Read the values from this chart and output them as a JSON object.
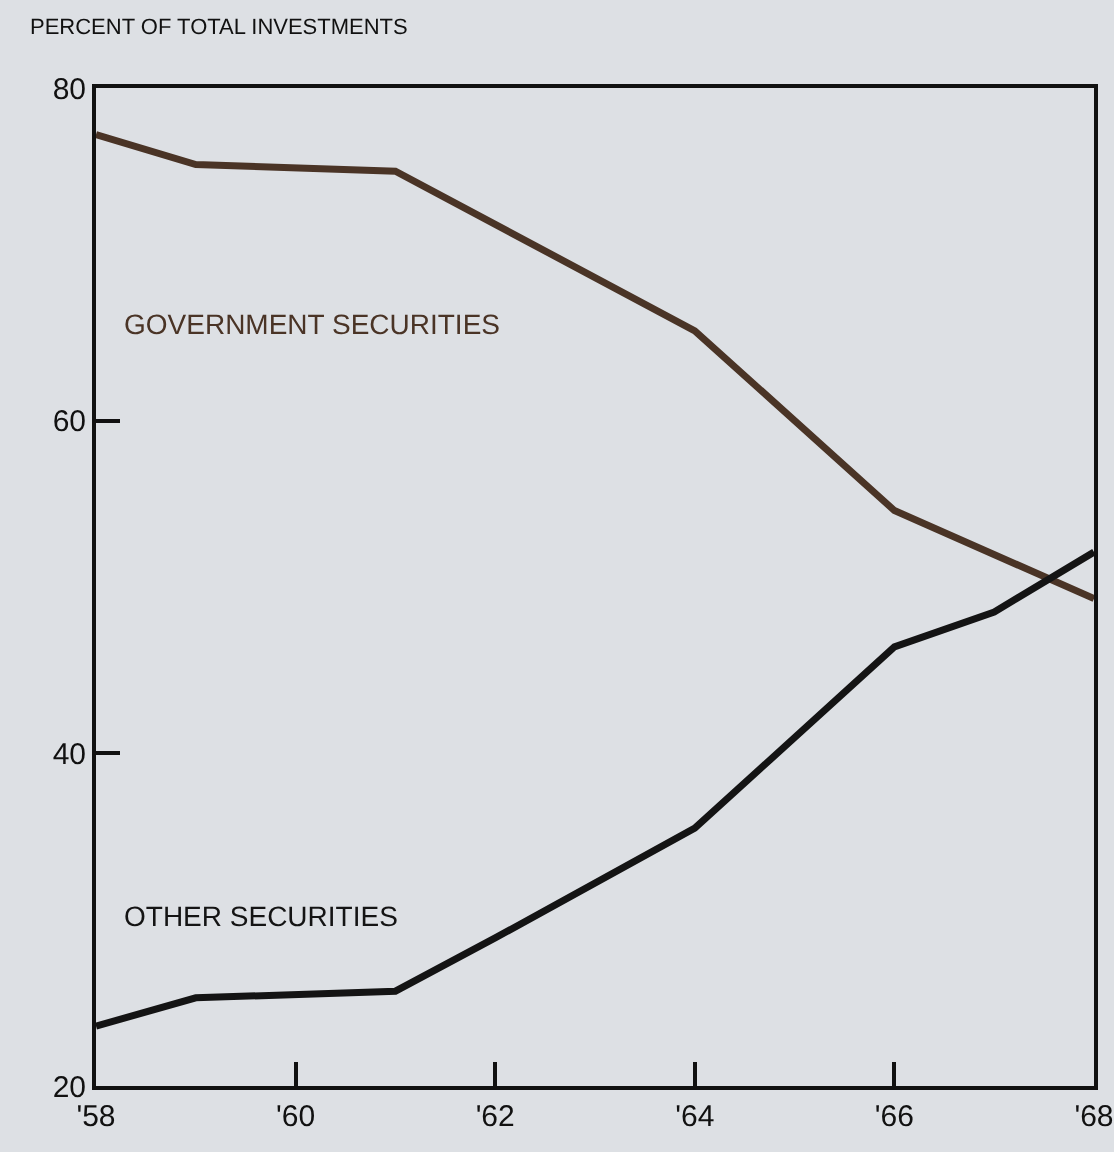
{
  "chart_data": {
    "type": "line",
    "ylabel": "PERCENT OF TOTAL INVESTMENTS",
    "xlim": [
      1958,
      1968
    ],
    "xticks": [
      {
        "value": 1958,
        "label": "'58"
      },
      {
        "value": 1960,
        "label": "'60"
      },
      {
        "value": 1962,
        "label": "'62"
      },
      {
        "value": 1964,
        "label": "'64"
      },
      {
        "value": 1966,
        "label": "'66"
      },
      {
        "value": 1968,
        "label": "'68"
      }
    ],
    "ylim": [
      20,
      80
    ],
    "yticks": [
      20,
      40,
      60,
      80
    ],
    "grid": false,
    "legend": false,
    "marker": "none",
    "line_style": "solid",
    "series": [
      {
        "name": "GOVERNMENT SECURITIES",
        "color": "#4a3426",
        "x": [
          1958,
          1959,
          1961,
          1964,
          1966,
          1968
        ],
        "values": [
          77.2,
          75.4,
          75.0,
          65.4,
          54.6,
          49.3
        ]
      },
      {
        "name": "OTHER SECURITIES",
        "color": "#141414",
        "x": [
          1958,
          1959,
          1961,
          1962,
          1964,
          1966,
          1967,
          1968
        ],
        "values": [
          23.6,
          25.3,
          25.7,
          28.9,
          35.5,
          46.4,
          48.5,
          52.1
        ]
      }
    ]
  }
}
